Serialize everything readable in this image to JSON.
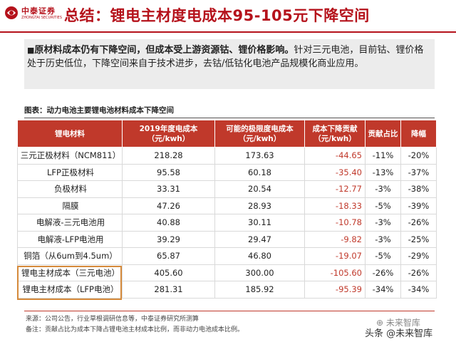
{
  "logo": {
    "cn": "中泰证券",
    "en": "ZHONGTAI SECURITIES",
    "icon": "zhongtai-logo-icon"
  },
  "title": "总结：锂电主材度电成本95-105元下降空间",
  "summary": {
    "bullet": "■",
    "bold_text": "原材料成本仍有下降空间，但成本受上游资源钴、锂价格影响。",
    "rest_text": "针对三元电池，目前钴、锂价格处于历史低位，下降空间来自于技术进步，去钴/低钴化电池产品规模化商业应用。"
  },
  "caption": "图表：动力电池主要锂电池材料成本下降空间",
  "table": {
    "headers": [
      {
        "line1": "锂电材料",
        "line2": ""
      },
      {
        "line1": "2019年度电成本",
        "line2": "（元/kwh）"
      },
      {
        "line1": "可能的极限度电成本",
        "line2": "（元/kwh）"
      },
      {
        "line1": "成本下降贡献",
        "line2": "（元/kwh）"
      },
      {
        "line1": "贡献占比",
        "line2": ""
      },
      {
        "line1": "降幅",
        "line2": ""
      }
    ],
    "rows": [
      [
        "三元正极材料（NCM811）",
        "218.28",
        "173.63",
        "-44.65",
        "-11%",
        "-20%"
      ],
      [
        "LFP正极材料",
        "95.58",
        "60.18",
        "-35.40",
        "-13%",
        "-37%"
      ],
      [
        "负极材料",
        "33.31",
        "20.54",
        "-12.77",
        "-3%",
        "-38%"
      ],
      [
        "隔膜",
        "47.26",
        "28.93",
        "-18.33",
        "-5%",
        "-39%"
      ],
      [
        "电解液-三元电池用",
        "40.88",
        "30.11",
        "-10.78",
        "-3%",
        "-26%"
      ],
      [
        "电解液-LFP电池用",
        "39.29",
        "29.47",
        "-9.82",
        "-3%",
        "-25%"
      ],
      [
        "铜箔（从6um到4.5um）",
        "65.87",
        "46.80",
        "-19.07",
        "-5%",
        "-29%"
      ],
      [
        "锂电主材成本（三元电池）",
        "405.60",
        "300.00",
        "-105.60",
        "-26%",
        "-26%"
      ],
      [
        "锂电主材成本（LFP电池）",
        "281.31",
        "185.92",
        "-95.39",
        "-34%",
        "-34%"
      ]
    ]
  },
  "footer": {
    "source": "来源：公司公告，行业草根调研信息等，中泰证券研究所测算",
    "note": "备注：贡献占比为成本下降占锂电池主材成本比例，而非动力电池成本比例。"
  },
  "watermark": {
    "top": "⊕ 未来智库",
    "bottom": "头条 @未来智库"
  },
  "colors": {
    "accent": "#b5121b",
    "header_fill": "#c0392b",
    "negative": "#c0392b",
    "highlight_border": "#d58a3b"
  }
}
